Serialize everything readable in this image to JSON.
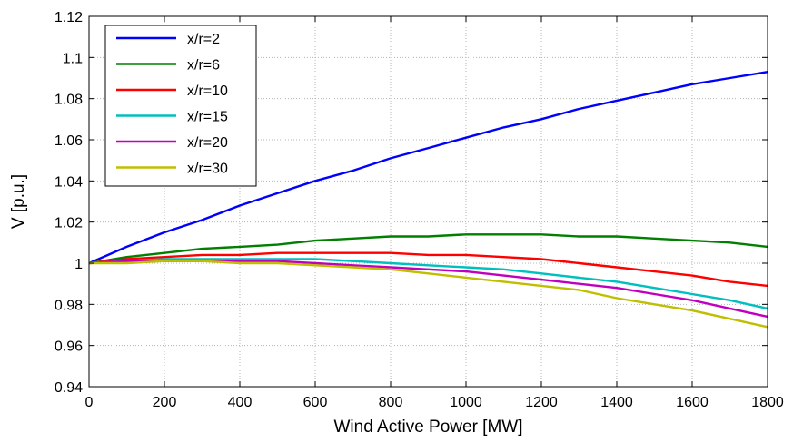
{
  "chart_data": {
    "type": "line",
    "xlabel": "Wind Active Power [MW]",
    "ylabel": "V [p.u.]",
    "xlim": [
      0,
      1800
    ],
    "ylim": [
      0.94,
      1.12
    ],
    "xticks": [
      0,
      200,
      400,
      600,
      800,
      1000,
      1200,
      1400,
      1600,
      1800
    ],
    "xtick_labels": [
      "0",
      "200",
      "400",
      "600",
      "800",
      "1000",
      "1200",
      "1400",
      "1600",
      "1800"
    ],
    "yticks": [
      0.94,
      0.96,
      0.98,
      1.0,
      1.02,
      1.04,
      1.06,
      1.08,
      1.1,
      1.12
    ],
    "ytick_labels": [
      "0.94",
      "0.96",
      "0.98",
      "1",
      "1.02",
      "1.04",
      "1.06",
      "1.08",
      "1.1",
      "1.12"
    ],
    "grid": true,
    "legend_position": "top-left",
    "x": [
      0,
      100,
      200,
      300,
      400,
      500,
      600,
      700,
      800,
      900,
      1000,
      1100,
      1200,
      1300,
      1400,
      1500,
      1600,
      1700,
      1800
    ],
    "series": [
      {
        "name": "x/r=2",
        "color": "#0000ff",
        "values": [
          1.0,
          1.008,
          1.015,
          1.021,
          1.028,
          1.034,
          1.04,
          1.045,
          1.051,
          1.056,
          1.061,
          1.066,
          1.07,
          1.075,
          1.079,
          1.083,
          1.087,
          1.09,
          1.093
        ]
      },
      {
        "name": "x/r=6",
        "color": "#007f00",
        "values": [
          1.0,
          1.003,
          1.005,
          1.007,
          1.008,
          1.009,
          1.011,
          1.012,
          1.013,
          1.013,
          1.014,
          1.014,
          1.014,
          1.013,
          1.013,
          1.012,
          1.011,
          1.01,
          1.008
        ]
      },
      {
        "name": "x/r=10",
        "color": "#ff0000",
        "values": [
          1.0,
          1.002,
          1.003,
          1.004,
          1.004,
          1.005,
          1.005,
          1.005,
          1.005,
          1.004,
          1.004,
          1.003,
          1.002,
          1.0,
          0.998,
          0.996,
          0.994,
          0.991,
          0.989
        ]
      },
      {
        "name": "x/r=15",
        "color": "#00bfbf",
        "values": [
          1.0,
          1.001,
          1.002,
          1.002,
          1.002,
          1.002,
          1.002,
          1.001,
          1.0,
          0.999,
          0.998,
          0.997,
          0.995,
          0.993,
          0.991,
          0.988,
          0.985,
          0.982,
          0.978
        ]
      },
      {
        "name": "x/r=20",
        "color": "#bf00bf",
        "values": [
          1.0,
          1.001,
          1.001,
          1.001,
          1.001,
          1.001,
          1.0,
          0.999,
          0.998,
          0.997,
          0.996,
          0.994,
          0.992,
          0.99,
          0.988,
          0.985,
          0.982,
          0.978,
          0.974
        ]
      },
      {
        "name": "x/r=30",
        "color": "#bfbf00",
        "values": [
          1.0,
          1.0,
          1.001,
          1.001,
          1.0,
          1.0,
          0.999,
          0.998,
          0.997,
          0.995,
          0.993,
          0.991,
          0.989,
          0.987,
          0.983,
          0.98,
          0.977,
          0.973,
          0.969
        ]
      }
    ]
  }
}
